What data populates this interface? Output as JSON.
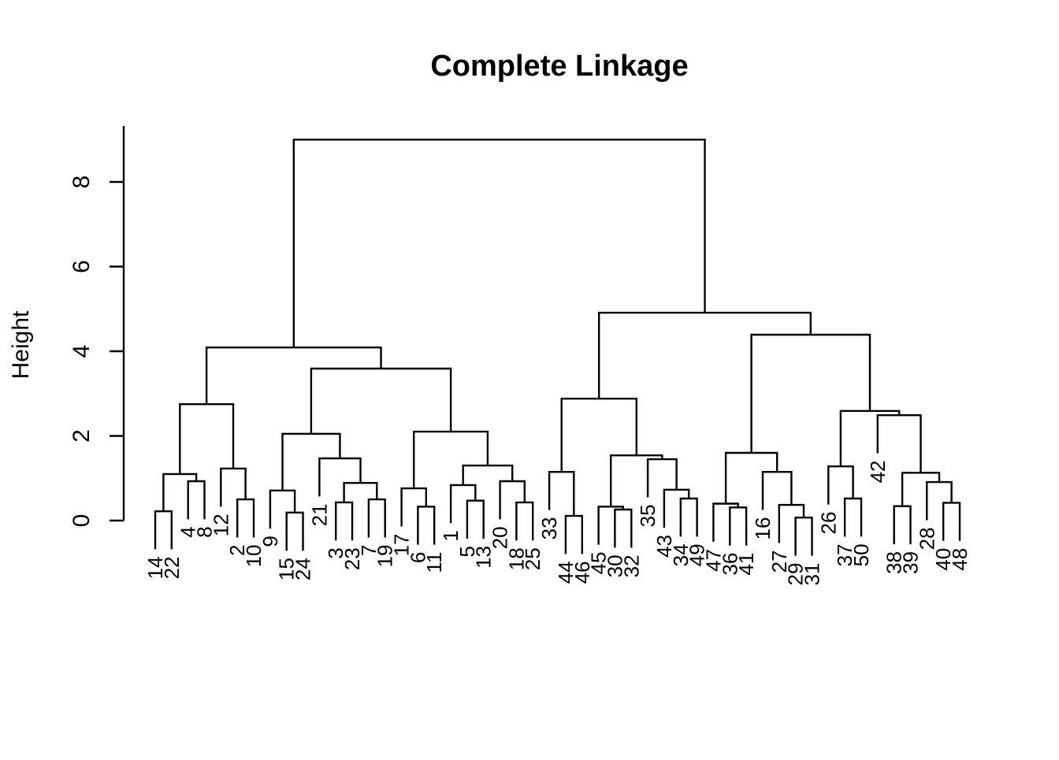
{
  "title": "Complete Linkage",
  "y_axis": {
    "label": "Height",
    "ticks": [
      0,
      2,
      4,
      6,
      8
    ]
  },
  "chart_data": {
    "type": "dendrogram",
    "title": "Complete Linkage",
    "ylabel": "Height",
    "xlabel": "",
    "linkage": "complete",
    "n_leaves": 50,
    "ylim": [
      0,
      9.3
    ],
    "yticks": [
      0,
      2,
      4,
      6,
      8
    ],
    "root_height": 9.0,
    "leaf_hang": 0.9,
    "leaf_order": [
      "14",
      "22",
      "4",
      "8",
      "12",
      "2",
      "10",
      "9",
      "15",
      "24",
      "21",
      "3",
      "23",
      "7",
      "19",
      "17",
      "6",
      "11",
      "1",
      "5",
      "13",
      "20",
      "18",
      "25",
      "33",
      "44",
      "46",
      "45",
      "30",
      "32",
      "35",
      "43",
      "34",
      "49",
      "47",
      "36",
      "41",
      "16",
      "27",
      "29",
      "31",
      "26",
      "37",
      "50",
      "42",
      "38",
      "39",
      "28",
      "40",
      "48"
    ],
    "tree": {
      "h": 9.0,
      "c": [
        {
          "h": 4.09,
          "c": [
            {
              "h": 2.75,
              "c": [
                {
                  "h": 1.1,
                  "c": [
                    {
                      "h": 0.22,
                      "c": [
                        "14",
                        "22"
                      ]
                    },
                    {
                      "h": 0.93,
                      "c": [
                        "4",
                        "8"
                      ]
                    }
                  ]
                },
                {
                  "h": 1.23,
                  "c": [
                    "12",
                    {
                      "h": 0.5,
                      "c": [
                        "2",
                        "10"
                      ]
                    }
                  ]
                }
              ]
            },
            {
              "h": 3.59,
              "c": [
                {
                  "h": 2.05,
                  "c": [
                    {
                      "h": 0.71,
                      "c": [
                        "9",
                        {
                          "h": 0.19,
                          "c": [
                            "15",
                            "24"
                          ]
                        }
                      ]
                    },
                    {
                      "h": 1.47,
                      "c": [
                        "21",
                        {
                          "h": 0.89,
                          "c": [
                            {
                              "h": 0.43,
                              "c": [
                                "3",
                                "23"
                              ]
                            },
                            {
                              "h": 0.5,
                              "c": [
                                "7",
                                "19"
                              ]
                            }
                          ]
                        }
                      ]
                    }
                  ]
                },
                {
                  "h": 2.1,
                  "c": [
                    {
                      "h": 0.76,
                      "c": [
                        "17",
                        {
                          "h": 0.33,
                          "c": [
                            "6",
                            "11"
                          ]
                        }
                      ]
                    },
                    {
                      "h": 1.3,
                      "c": [
                        {
                          "h": 0.84,
                          "c": [
                            "1",
                            {
                              "h": 0.47,
                              "c": [
                                "5",
                                "13"
                              ]
                            }
                          ]
                        },
                        {
                          "h": 0.93,
                          "c": [
                            "20",
                            {
                              "h": 0.43,
                              "c": [
                                "18",
                                "25"
                              ]
                            }
                          ]
                        }
                      ]
                    }
                  ]
                }
              ]
            }
          ]
        },
        {
          "h": 4.91,
          "c": [
            {
              "h": 2.88,
              "c": [
                {
                  "h": 1.15,
                  "c": [
                    "33",
                    {
                      "h": 0.11,
                      "c": [
                        "44",
                        "46"
                      ]
                    }
                  ]
                },
                {
                  "h": 1.54,
                  "c": [
                    {
                      "h": 0.33,
                      "c": [
                        "45",
                        {
                          "h": 0.26,
                          "c": [
                            "30",
                            "32"
                          ]
                        }
                      ]
                    },
                    {
                      "h": 1.45,
                      "c": [
                        "35",
                        {
                          "h": 0.73,
                          "c": [
                            "43",
                            {
                              "h": 0.52,
                              "c": [
                                "34",
                                "49"
                              ]
                            }
                          ]
                        }
                      ]
                    }
                  ]
                }
              ]
            },
            {
              "h": 4.39,
              "c": [
                {
                  "h": 1.6,
                  "c": [
                    {
                      "h": 0.4,
                      "c": [
                        "47",
                        {
                          "h": 0.31,
                          "c": [
                            "36",
                            "41"
                          ]
                        }
                      ]
                    },
                    {
                      "h": 1.15,
                      "c": [
                        "16",
                        {
                          "h": 0.37,
                          "c": [
                            "27",
                            {
                              "h": 0.07,
                              "c": [
                                "29",
                                "31"
                              ]
                            }
                          ]
                        }
                      ]
                    }
                  ]
                },
                {
                  "h": 2.59,
                  "c": [
                    {
                      "h": 1.28,
                      "c": [
                        "26",
                        {
                          "h": 0.52,
                          "c": [
                            "37",
                            "50"
                          ]
                        }
                      ]
                    },
                    {
                      "h": 2.49,
                      "c": [
                        "42",
                        {
                          "h": 1.13,
                          "c": [
                            {
                              "h": 0.34,
                              "c": [
                                "38",
                                "39"
                              ]
                            },
                            {
                              "h": 0.91,
                              "c": [
                                "28",
                                {
                                  "h": 0.42,
                                  "c": [
                                    "40",
                                    "48"
                                  ]
                                }
                              ]
                            }
                          ]
                        }
                      ]
                    }
                  ]
                }
              ]
            }
          ]
        }
      ]
    }
  }
}
